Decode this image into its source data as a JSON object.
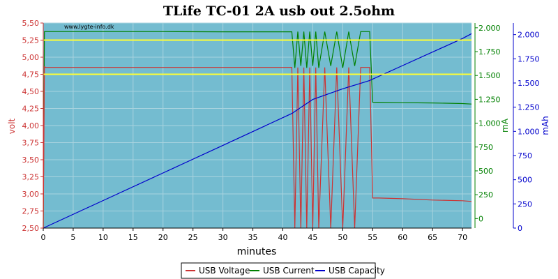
{
  "chart_data": {
    "type": "line",
    "title": "TLife TC-01 2A usb out 2.5ohm",
    "watermark": "www.lygte-info.dk",
    "xlabel": "minutes",
    "y_left_label": "volt",
    "y_right1_label": "mA",
    "y_right2_label": "mAh",
    "xlim": [
      0,
      71.5
    ],
    "y_left_lim": [
      2.5,
      5.5
    ],
    "y_right1_lim": [
      -100,
      2050
    ],
    "y_right2_lim": [
      0,
      2120
    ],
    "x_ticks": [
      "0",
      "5",
      "10",
      "15",
      "20",
      "25",
      "30",
      "35",
      "40",
      "45",
      "50",
      "55",
      "60",
      "65",
      "70"
    ],
    "y_left_ticks": [
      "2,50",
      "2,75",
      "3,00",
      "3,25",
      "3,50",
      "3,75",
      "4,00",
      "4,25",
      "4,50",
      "4,75",
      "5,00",
      "5,25",
      "5,50"
    ],
    "y_right1_ticks": [
      "0",
      "250",
      "500",
      "750",
      "1.000",
      "1.250",
      "1.500",
      "1.750",
      "2.000"
    ],
    "y_right2_ticks": [
      "0",
      "250",
      "500",
      "750",
      "1.000",
      "1.250",
      "1.500",
      "1.750",
      "2.000"
    ],
    "reference_lines_volt": [
      5.25,
      4.75
    ],
    "grid": true,
    "legend_position": "bottom-center",
    "colors": {
      "plot_bg": "#74bcd0",
      "grid": "#a9d3df",
      "voltage": "#cc3333",
      "current": "#008000",
      "capacity": "#0000cc",
      "reference": "#ffff33",
      "left_axis": "#cc3333",
      "right1_axis": "#008000",
      "right2_axis": "#0000cc"
    },
    "series": [
      {
        "name": "USB Voltage",
        "axis": "left",
        "x": [
          0,
          0.2,
          0.4,
          10,
          20,
          30,
          40,
          41.5,
          42,
          42.5,
          43,
          43.5,
          44,
          44.5,
          45,
          45.5,
          46,
          47,
          48,
          49,
          50,
          51,
          52,
          53,
          54.5,
          55,
          56,
          60,
          65,
          70,
          71.5
        ],
        "values": [
          2.5,
          4.86,
          4.85,
          4.85,
          4.85,
          4.85,
          4.85,
          4.85,
          2.5,
          4.85,
          2.5,
          4.85,
          2.5,
          4.85,
          2.5,
          4.85,
          2.5,
          4.85,
          2.5,
          4.85,
          2.5,
          4.85,
          2.5,
          4.85,
          4.85,
          2.94,
          2.94,
          2.93,
          2.91,
          2.9,
          2.89
        ]
      },
      {
        "name": "USB Current",
        "axis": "right1",
        "x": [
          0,
          0.2,
          0.4,
          10,
          20,
          30,
          40,
          41.5,
          42,
          42.5,
          43,
          43.5,
          44,
          44.5,
          45,
          45.5,
          46,
          47,
          48,
          49,
          50,
          51,
          52,
          53,
          54.5,
          55,
          60,
          65,
          70,
          71.5
        ],
        "values": [
          -100,
          1960,
          1960,
          1960,
          1960,
          1958,
          1958,
          1958,
          1580,
          1960,
          1600,
          1960,
          1580,
          1960,
          1600,
          1960,
          1580,
          1960,
          1600,
          1960,
          1580,
          1960,
          1600,
          1960,
          1960,
          1220,
          1215,
          1212,
          1205,
          1200
        ]
      },
      {
        "name": "USB Capacity",
        "axis": "right2",
        "x": [
          0,
          10,
          20,
          30,
          41.5,
          45,
          50,
          54.5,
          55,
          60,
          65,
          70,
          71.5
        ],
        "values": [
          0,
          285,
          570,
          855,
          1185,
          1330,
          1440,
          1525,
          1540,
          1680,
          1820,
          1960,
          2010
        ]
      }
    ]
  }
}
